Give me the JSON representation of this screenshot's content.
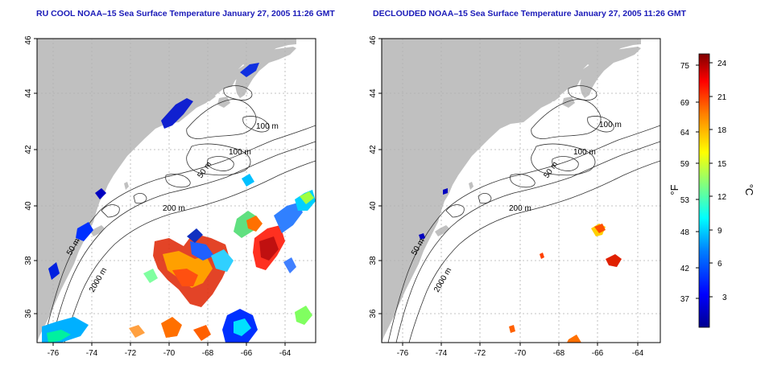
{
  "titles": {
    "left": "RU COOL NOAA–15 Sea Surface Temperature January 27, 2005 11:26 GMT",
    "right": "DECLOUDED NOAA–15 Sea Surface Temperature January 27, 2005 11:26 GMT"
  },
  "axes": {
    "x_ticks": [
      "-76",
      "-74",
      "-72",
      "-70",
      "-68",
      "-66",
      "-64"
    ],
    "y_ticks": [
      "36",
      "38",
      "40",
      "42",
      "44",
      "46"
    ]
  },
  "contour_labels": {
    "left": [
      "100 m",
      "100 m",
      "50 m",
      "200 m",
      "50 m",
      "2000 m"
    ],
    "right": [
      "100 m",
      "100 m",
      "50 m",
      "200 m",
      "50 m",
      "2000 m"
    ]
  },
  "colorbar": {
    "fahrenheit_label": "°F",
    "celsius_label": "°C",
    "fahrenheit_ticks": [
      "75",
      "69",
      "64",
      "59",
      "53",
      "48",
      "42",
      "37"
    ],
    "celsius_ticks": [
      "24",
      "21",
      "18",
      "15",
      "12",
      "9",
      "6",
      "3"
    ],
    "colors": [
      "#00008f",
      "#0000ff",
      "#0080ff",
      "#00ffff",
      "#80ff80",
      "#ffff00",
      "#ff8000",
      "#ff0000",
      "#800000"
    ]
  },
  "colors": {
    "land": "#c0c0c0",
    "water": "#ffffff",
    "title": "#1a1ab8",
    "grid": "#b0b0b0"
  }
}
